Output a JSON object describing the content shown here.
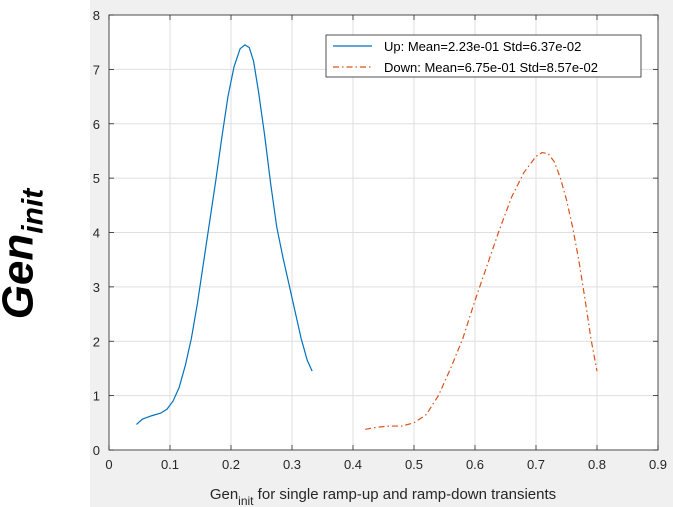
{
  "figure": {
    "ylabel_main": "Gen",
    "ylabel_sub": "init"
  },
  "chart_data": {
    "type": "line",
    "xlabel_main": "Gen",
    "xlabel_sub": "init",
    "xlabel_rest": " for single ramp-up and ramp-down transients",
    "xlim": [
      0,
      0.9
    ],
    "ylim": [
      0,
      8
    ],
    "xticks": [
      "0",
      "0.1",
      "0.2",
      "0.3",
      "0.4",
      "0.5",
      "0.6",
      "0.7",
      "0.8",
      "0.9"
    ],
    "yticks": [
      "0",
      "1",
      "2",
      "3",
      "4",
      "5",
      "6",
      "7",
      "8"
    ],
    "grid": true,
    "legend_position": "top-right",
    "series": [
      {
        "name": "Up: Mean=2.23e-01 Std=6.37e-02",
        "color": "#0072bd",
        "line_style": "solid",
        "x": [
          0.045,
          0.055,
          0.07,
          0.085,
          0.095,
          0.105,
          0.115,
          0.125,
          0.135,
          0.145,
          0.155,
          0.165,
          0.175,
          0.185,
          0.195,
          0.205,
          0.215,
          0.223,
          0.23,
          0.237,
          0.245,
          0.255,
          0.265,
          0.275,
          0.285,
          0.295,
          0.305,
          0.315,
          0.325,
          0.333
        ],
        "y": [
          0.47,
          0.57,
          0.63,
          0.68,
          0.75,
          0.9,
          1.15,
          1.55,
          2.05,
          2.7,
          3.45,
          4.2,
          4.95,
          5.75,
          6.5,
          7.05,
          7.38,
          7.45,
          7.4,
          7.15,
          6.6,
          5.8,
          4.9,
          4.1,
          3.55,
          3.05,
          2.55,
          2.05,
          1.65,
          1.45
        ]
      },
      {
        "name": "Down: Mean=6.75e-01 Std=8.57e-02",
        "color": "#d95319",
        "line_style": "dashdot",
        "x": [
          0.42,
          0.44,
          0.46,
          0.48,
          0.5,
          0.52,
          0.54,
          0.56,
          0.58,
          0.6,
          0.62,
          0.64,
          0.66,
          0.68,
          0.7,
          0.71,
          0.72,
          0.73,
          0.74,
          0.75,
          0.76,
          0.77,
          0.78,
          0.79,
          0.8
        ],
        "y": [
          0.38,
          0.42,
          0.44,
          0.44,
          0.5,
          0.65,
          1.0,
          1.5,
          2.05,
          2.75,
          3.4,
          4.05,
          4.65,
          5.1,
          5.4,
          5.47,
          5.45,
          5.3,
          5.0,
          4.6,
          4.1,
          3.5,
          2.8,
          2.05,
          1.45
        ]
      }
    ]
  }
}
